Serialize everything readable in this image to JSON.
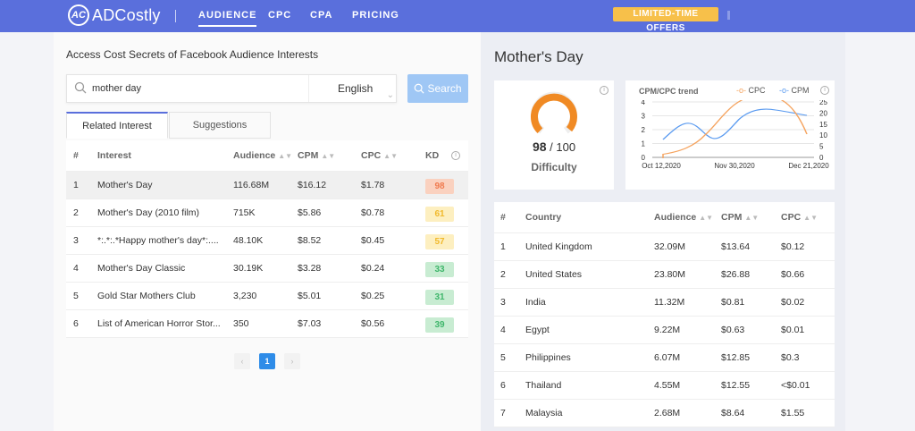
{
  "header": {
    "logo_mark": "AC",
    "logo_text": "ADCostly",
    "nav": [
      "AUDIENCE",
      "CPC",
      "CPA",
      "PRICING"
    ],
    "promo": "LIMITED-TIME OFFERS",
    "brand_color": "#5a6fdc",
    "promo_color": "#f7c04a"
  },
  "left": {
    "title": "Access Cost Secrets of Facebook Audience Interests",
    "search_value": "mother day",
    "language": "English",
    "search_button": "Search",
    "tabs": [
      "Related Interest",
      "Suggestions"
    ],
    "columns": [
      "#",
      "Interest",
      "Audience",
      "CPM",
      "CPC",
      "KD"
    ],
    "rows": [
      {
        "n": "1",
        "interest": "Mother's Day",
        "audience": "116.68M",
        "cpm": "$16.12",
        "cpc": "$1.78",
        "kd": "98",
        "kd_level": "red"
      },
      {
        "n": "2",
        "interest": "Mother's Day (2010 film)",
        "audience": "715K",
        "cpm": "$5.86",
        "cpc": "$0.78",
        "kd": "61",
        "kd_level": "yellow"
      },
      {
        "n": "3",
        "interest": "*:.*:.*Happy mother's day*:....",
        "audience": "48.10K",
        "cpm": "$8.52",
        "cpc": "$0.45",
        "kd": "57",
        "kd_level": "yellow"
      },
      {
        "n": "4",
        "interest": "Mother's Day Classic",
        "audience": "30.19K",
        "cpm": "$3.28",
        "cpc": "$0.24",
        "kd": "33",
        "kd_level": "green"
      },
      {
        "n": "5",
        "interest": "Gold Star Mothers Club",
        "audience": "3,230",
        "cpm": "$5.01",
        "cpc": "$0.25",
        "kd": "31",
        "kd_level": "green"
      },
      {
        "n": "6",
        "interest": "List of American Horror Stor...",
        "audience": "350",
        "cpm": "$7.03",
        "cpc": "$0.56",
        "kd": "39",
        "kd_level": "green"
      }
    ],
    "pager": {
      "prev": "‹",
      "current": "1",
      "next": "›"
    }
  },
  "right": {
    "title": "Mother's Day",
    "difficulty": {
      "value": "98",
      "max": "/ 100",
      "label": "Difficulty",
      "fraction": 0.98
    },
    "trend": {
      "title": "CPM/CPC trend",
      "legend_cpc": "CPC",
      "legend_cpm": "CPM",
      "y_left": [
        "4",
        "3",
        "2",
        "1",
        "0"
      ],
      "y_right": [
        "25",
        "20",
        "15",
        "10",
        "5",
        "0"
      ],
      "x_labels": [
        "Oct 12,2020",
        "Nov 30,2020",
        "Dec 21,2020"
      ],
      "cpc_color": "#f5a35e",
      "cpm_color": "#5b9bf0"
    },
    "columns": [
      "#",
      "Country",
      "Audience",
      "CPM",
      "CPC"
    ],
    "rows": [
      {
        "n": "1",
        "country": "United Kingdom",
        "audience": "32.09M",
        "cpm": "$13.64",
        "cpc": "$0.12"
      },
      {
        "n": "2",
        "country": "United States",
        "audience": "23.80M",
        "cpm": "$26.88",
        "cpc": "$0.66"
      },
      {
        "n": "3",
        "country": "India",
        "audience": "11.32M",
        "cpm": "$0.81",
        "cpc": "$0.02"
      },
      {
        "n": "4",
        "country": "Egypt",
        "audience": "9.22M",
        "cpm": "$0.63",
        "cpc": "$0.01"
      },
      {
        "n": "5",
        "country": "Philippines",
        "audience": "6.07M",
        "cpm": "$12.85",
        "cpc": "$0.3"
      },
      {
        "n": "6",
        "country": "Thailand",
        "audience": "4.55M",
        "cpm": "$12.55",
        "cpc": "<$0.01"
      },
      {
        "n": "7",
        "country": "Malaysia",
        "audience": "2.68M",
        "cpm": "$8.64",
        "cpc": "$1.55"
      }
    ]
  }
}
